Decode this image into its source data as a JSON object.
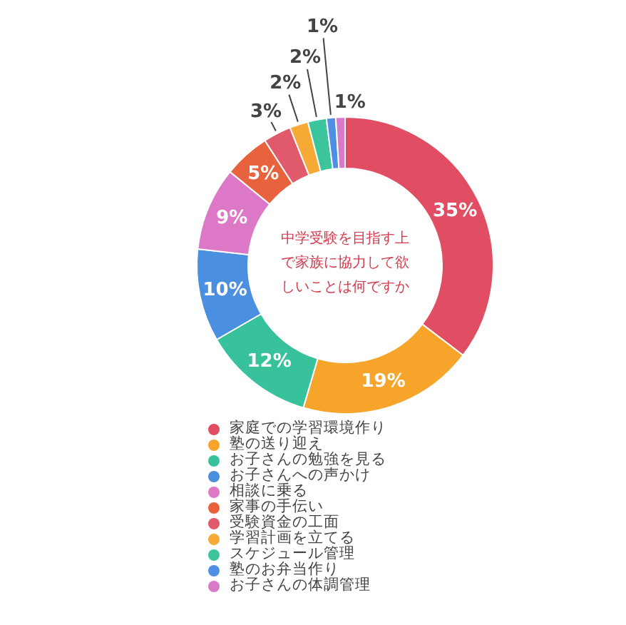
{
  "chart_data": {
    "type": "donut",
    "title": "中学受験を目指す上で家族に協力して欲しいことは何ですか",
    "categories": [
      "家庭での学習環境作り",
      "塾の送り迎え",
      "お子さんの勉強を見る",
      "お子さんへの声かけ",
      "相談に乗る",
      "家事の手伝い",
      "受験資金の工面",
      "学習計画を立てる",
      "スケジュール管理",
      "塾のお弁当作り",
      "お子さんの体調管理"
    ],
    "values": [
      35,
      19,
      12,
      10,
      9,
      5,
      3,
      2,
      2,
      1,
      1
    ],
    "value_labels": [
      "35%",
      "19%",
      "12%",
      "10%",
      "9%",
      "5%",
      "3%",
      "2%",
      "2%",
      "1%",
      "1%"
    ],
    "colors": [
      "#e14d62",
      "#f7a42a",
      "#37c29b",
      "#4a8fe0",
      "#dc78c5",
      "#e8623e",
      "#e15a6c",
      "#f7aa35",
      "#3cc49c",
      "#4f8fe3",
      "#d97ac8"
    ],
    "legend": "bottom"
  }
}
